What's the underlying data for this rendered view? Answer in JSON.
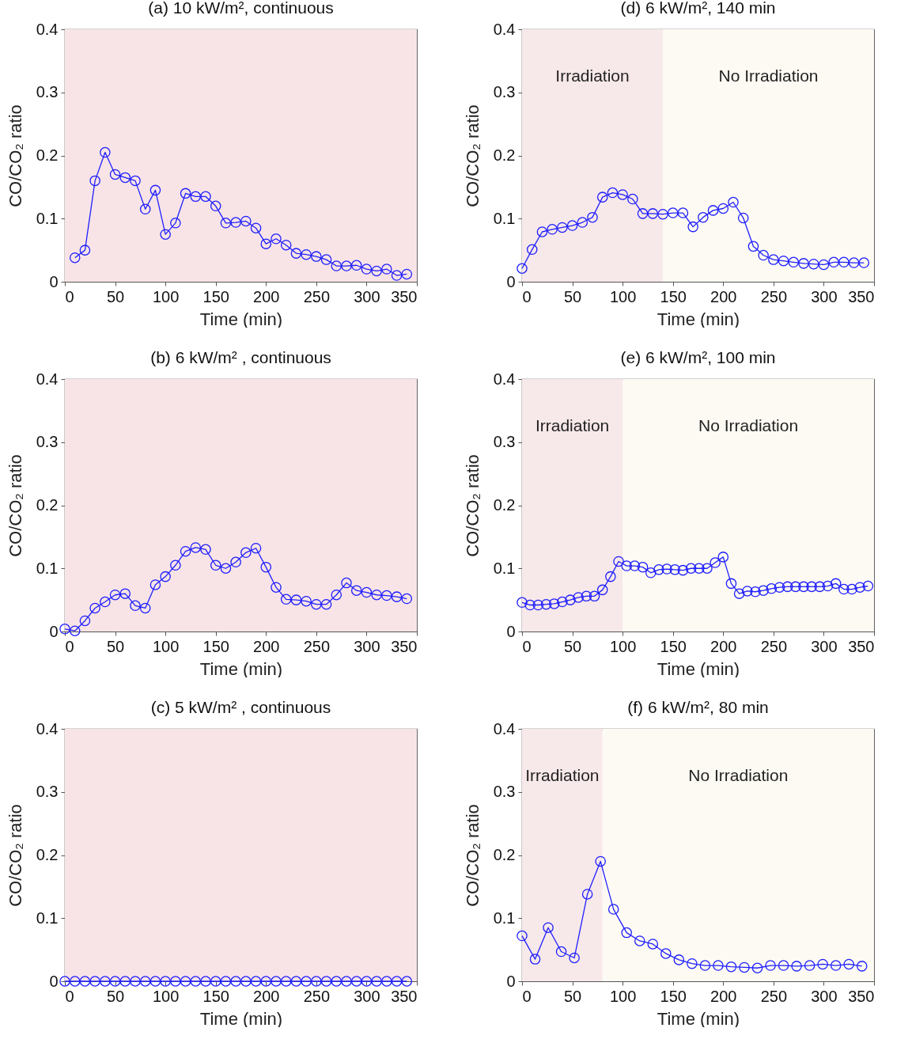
{
  "chart_data": [
    {
      "type": "line",
      "title": "(a) 10 kW/m², continuous",
      "xlabel": "Time (min)",
      "ylabel": "CO/CO₂ ratio",
      "xlim": [
        0,
        350
      ],
      "ylim": [
        0,
        0.4
      ],
      "xticks": [
        0,
        50,
        100,
        150,
        200,
        250,
        300,
        350
      ],
      "yticks": [
        0,
        0.1,
        0.2,
        0.3,
        0.4
      ],
      "grid": false,
      "marker": "circle",
      "line_style": "solid",
      "bands": [
        {
          "axis": "x",
          "from": 0,
          "to": 350,
          "color": "#f8e4e6"
        }
      ],
      "series": [
        {
          "color": "#1f1fff",
          "x": [
            10,
            20,
            30,
            40,
            50,
            60,
            70,
            80,
            90,
            100,
            110,
            120,
            130,
            140,
            150,
            160,
            170,
            180,
            190,
            200,
            210,
            220,
            230,
            240,
            250,
            260,
            270,
            280,
            290,
            300,
            310,
            320,
            330,
            340
          ],
          "values": [
            0.038,
            0.05,
            0.16,
            0.205,
            0.17,
            0.165,
            0.16,
            0.115,
            0.145,
            0.075,
            0.093,
            0.14,
            0.135,
            0.135,
            0.12,
            0.093,
            0.094,
            0.096,
            0.085,
            0.06,
            0.068,
            0.058,
            0.045,
            0.043,
            0.04,
            0.035,
            0.025,
            0.025,
            0.026,
            0.02,
            0.017,
            0.02,
            0.01,
            0.012
          ]
        }
      ]
    },
    {
      "type": "line",
      "title": "(d) 6 kW/m², 140 min",
      "xlabel": "Time (min)",
      "ylabel": "CO/CO₂ ratio",
      "xlim": [
        0,
        350
      ],
      "ylim": [
        0,
        0.4
      ],
      "xticks": [
        0,
        50,
        100,
        150,
        200,
        250,
        300,
        350
      ],
      "yticks": [
        0,
        0.1,
        0.2,
        0.3,
        0.4
      ],
      "grid": false,
      "marker": "circle",
      "line_style": "solid",
      "bands": [
        {
          "axis": "x",
          "from": 0,
          "to": 140,
          "label": "Irradiation",
          "color": "#f7e8e9"
        },
        {
          "axis": "x",
          "from": 140,
          "to": 350,
          "label": "No Irradiation",
          "color": "#fdfaf3"
        }
      ],
      "series": [
        {
          "color": "#1f1fff",
          "x": [
            0,
            10,
            20,
            30,
            40,
            50,
            60,
            70,
            80,
            90,
            100,
            110,
            120,
            130,
            140,
            150,
            160,
            170,
            180,
            190,
            200,
            210,
            220,
            230,
            240,
            250,
            260,
            270,
            280,
            290,
            300,
            310,
            320,
            330,
            340
          ],
          "values": [
            0.021,
            0.051,
            0.079,
            0.083,
            0.086,
            0.089,
            0.094,
            0.102,
            0.134,
            0.141,
            0.138,
            0.131,
            0.108,
            0.108,
            0.107,
            0.109,
            0.109,
            0.087,
            0.102,
            0.113,
            0.116,
            0.126,
            0.101,
            0.056,
            0.042,
            0.035,
            0.033,
            0.031,
            0.029,
            0.028,
            0.027,
            0.031,
            0.031,
            0.03,
            0.03
          ]
        }
      ]
    },
    {
      "type": "line",
      "title": "(b) 6 kW/m² , continuous",
      "xlabel": "Time (min)",
      "ylabel": "CO/CO₂ ratio",
      "xlim": [
        0,
        350
      ],
      "ylim": [
        0,
        0.4
      ],
      "xticks": [
        0,
        50,
        100,
        150,
        200,
        250,
        300,
        350
      ],
      "yticks": [
        0,
        0.1,
        0.2,
        0.3,
        0.4
      ],
      "grid": false,
      "marker": "circle",
      "line_style": "solid",
      "bands": [
        {
          "axis": "x",
          "from": 0,
          "to": 350,
          "color": "#f8e4e6"
        }
      ],
      "series": [
        {
          "color": "#1f1fff",
          "x": [
            0,
            10,
            20,
            30,
            40,
            50,
            60,
            70,
            80,
            90,
            100,
            110,
            120,
            130,
            140,
            150,
            160,
            170,
            180,
            190,
            200,
            210,
            220,
            230,
            240,
            250,
            260,
            270,
            280,
            290,
            300,
            310,
            320,
            330,
            340
          ],
          "values": [
            0.004,
            0.001,
            0.017,
            0.037,
            0.047,
            0.058,
            0.06,
            0.041,
            0.037,
            0.074,
            0.087,
            0.105,
            0.127,
            0.133,
            0.13,
            0.105,
            0.1,
            0.11,
            0.125,
            0.132,
            0.102,
            0.07,
            0.051,
            0.05,
            0.048,
            0.043,
            0.043,
            0.058,
            0.077,
            0.065,
            0.062,
            0.058,
            0.057,
            0.055,
            0.052
          ]
        }
      ]
    },
    {
      "type": "line",
      "title": "(e) 6 kW/m², 100 min",
      "xlabel": "Time (min)",
      "ylabel": "CO/CO₂ ratio",
      "xlim": [
        0,
        350
      ],
      "ylim": [
        0,
        0.4
      ],
      "xticks": [
        0,
        50,
        100,
        150,
        200,
        250,
        300,
        350
      ],
      "yticks": [
        0,
        0.1,
        0.2,
        0.3,
        0.4
      ],
      "grid": false,
      "marker": "circle",
      "line_style": "solid",
      "bands": [
        {
          "axis": "x",
          "from": 0,
          "to": 100,
          "label": "Irradiation",
          "color": "#f7e8e9"
        },
        {
          "axis": "x",
          "from": 100,
          "to": 350,
          "label": "No Irradiation",
          "color": "#fdfaf3"
        }
      ],
      "series": [
        {
          "color": "#1f1fff",
          "x": [
            0,
            8,
            16,
            24,
            32,
            40,
            48,
            56,
            64,
            72,
            80,
            88,
            96,
            104,
            112,
            120,
            128,
            136,
            144,
            152,
            160,
            168,
            176,
            184,
            192,
            200,
            208,
            216,
            224,
            232,
            240,
            248,
            256,
            264,
            272,
            280,
            288,
            296,
            304,
            312,
            320,
            328,
            336,
            344
          ],
          "values": [
            0.046,
            0.042,
            0.042,
            0.043,
            0.044,
            0.047,
            0.05,
            0.054,
            0.056,
            0.056,
            0.066,
            0.087,
            0.111,
            0.104,
            0.104,
            0.102,
            0.093,
            0.098,
            0.099,
            0.098,
            0.097,
            0.1,
            0.1,
            0.1,
            0.109,
            0.118,
            0.076,
            0.06,
            0.064,
            0.063,
            0.065,
            0.068,
            0.07,
            0.071,
            0.071,
            0.071,
            0.071,
            0.071,
            0.072,
            0.076,
            0.067,
            0.067,
            0.07,
            0.072
          ]
        }
      ]
    },
    {
      "type": "line",
      "title": "(c) 5 kW/m² , continuous",
      "xlabel": "Time (min)",
      "ylabel": "CO/CO₂ ratio",
      "xlim": [
        0,
        350
      ],
      "ylim": [
        0,
        0.4
      ],
      "xticks": [
        0,
        50,
        100,
        150,
        200,
        250,
        300,
        350
      ],
      "yticks": [
        0,
        0.1,
        0.2,
        0.3,
        0.4
      ],
      "grid": false,
      "marker": "circle",
      "line_style": "solid",
      "bands": [
        {
          "axis": "x",
          "from": 0,
          "to": 350,
          "color": "#f8e4e6"
        }
      ],
      "series": [
        {
          "color": "#1f1fff",
          "x": [
            0,
            10,
            20,
            30,
            40,
            50,
            60,
            70,
            80,
            90,
            100,
            110,
            120,
            130,
            140,
            150,
            160,
            170,
            180,
            190,
            200,
            210,
            220,
            230,
            240,
            250,
            260,
            270,
            280,
            290,
            300,
            310,
            320,
            330,
            340
          ],
          "values": [
            0,
            0,
            0,
            0,
            0,
            0,
            0,
            0,
            0,
            0,
            0,
            0,
            0,
            0,
            0,
            0,
            0,
            0,
            0,
            0,
            0,
            0,
            0,
            0,
            0,
            0,
            0,
            0,
            0,
            0,
            0,
            0,
            0,
            0,
            0
          ]
        }
      ]
    },
    {
      "type": "line",
      "title": "(f) 6 kW/m², 80 min",
      "xlabel": "Time (min)",
      "ylabel": "CO/CO₂ ratio",
      "xlim": [
        0,
        350
      ],
      "ylim": [
        0,
        0.4
      ],
      "xticks": [
        0,
        50,
        100,
        150,
        200,
        250,
        300,
        350
      ],
      "yticks": [
        0,
        0.1,
        0.2,
        0.3,
        0.4
      ],
      "grid": false,
      "marker": "circle",
      "line_style": "solid",
      "bands": [
        {
          "axis": "x",
          "from": 0,
          "to": 80,
          "label": "Irradiation",
          "color": "#f7e8e9"
        },
        {
          "axis": "x",
          "from": 80,
          "to": 350,
          "label": "No Irradiation",
          "color": "#fdfaf3"
        }
      ],
      "series": [
        {
          "color": "#1f1fff",
          "x": [
            0,
            13,
            26,
            39,
            52,
            65,
            78,
            91,
            104,
            117,
            130,
            143,
            156,
            169,
            182,
            195,
            208,
            221,
            234,
            247,
            260,
            273,
            286,
            299,
            312,
            325,
            338
          ],
          "values": [
            0.072,
            0.035,
            0.085,
            0.047,
            0.037,
            0.138,
            0.19,
            0.114,
            0.077,
            0.064,
            0.059,
            0.044,
            0.034,
            0.028,
            0.025,
            0.025,
            0.023,
            0.022,
            0.021,
            0.025,
            0.025,
            0.024,
            0.025,
            0.027,
            0.025,
            0.027,
            0.024
          ]
        }
      ]
    }
  ]
}
